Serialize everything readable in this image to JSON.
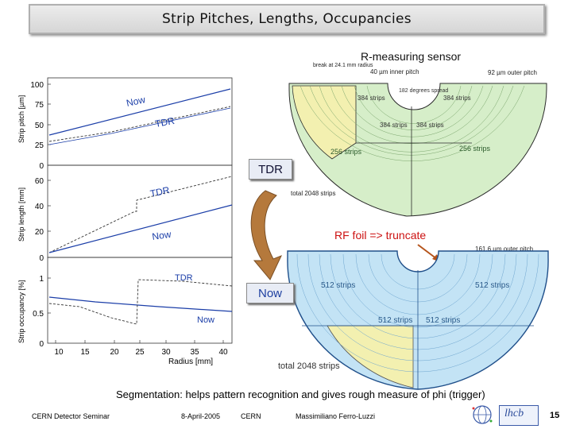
{
  "slide_title": "Strip Pitches, Lengths, Occupancies",
  "plots": {
    "ylabel_pitch": "Strip pitch [µm]",
    "ylabel_length": "Strip length [mm]",
    "ylabel_occupancy": "Strip occupancy [%]",
    "xlabel": "Radius [mm]",
    "yticks_pitch": [
      "100",
      "75",
      "50",
      "25",
      "0"
    ],
    "yticks_length": [
      "60",
      "40",
      "20",
      "0"
    ],
    "yticks_occupancy": [
      "1",
      "0.5",
      "0"
    ],
    "xticks": [
      "10",
      "15",
      "20",
      "25",
      "30",
      "35",
      "40"
    ],
    "label_now": "Now",
    "label_tdr": "TDR"
  },
  "r_sensor": {
    "title": "R-measuring sensor",
    "break_note": "break at 24.1 mm radius",
    "inner_pitch": "40 µm inner pitch",
    "outer_pitch": "92 µm outer pitch",
    "spread": "182 degrees spread",
    "strips_384": "384 strips",
    "strips_256": "256 strips",
    "total": "total 2048 strips"
  },
  "tdr_box": "TDR",
  "now_box": "Now",
  "rf_note": "RF foil => truncate",
  "lower_sensor": {
    "outer_pitch": "161.6 µm outer pitch",
    "strips_512": "512 strips",
    "total": "total 2048 strips"
  },
  "caption": "Segmentation: helps pattern recognition and gives rough measure of phi (trigger)",
  "footer": {
    "left": "CERN Detector Seminar",
    "date": "8-April-2005",
    "org": "CERN",
    "author": "Massimiliano Ferro-Luzzi",
    "page": "15",
    "logo_text": "lhcb"
  },
  "colors": {
    "upper_fill": "#d6eec9",
    "lower_fill": "#c3e3f5",
    "highlight": "#f3f0b0",
    "arrow": "#b5793c"
  }
}
